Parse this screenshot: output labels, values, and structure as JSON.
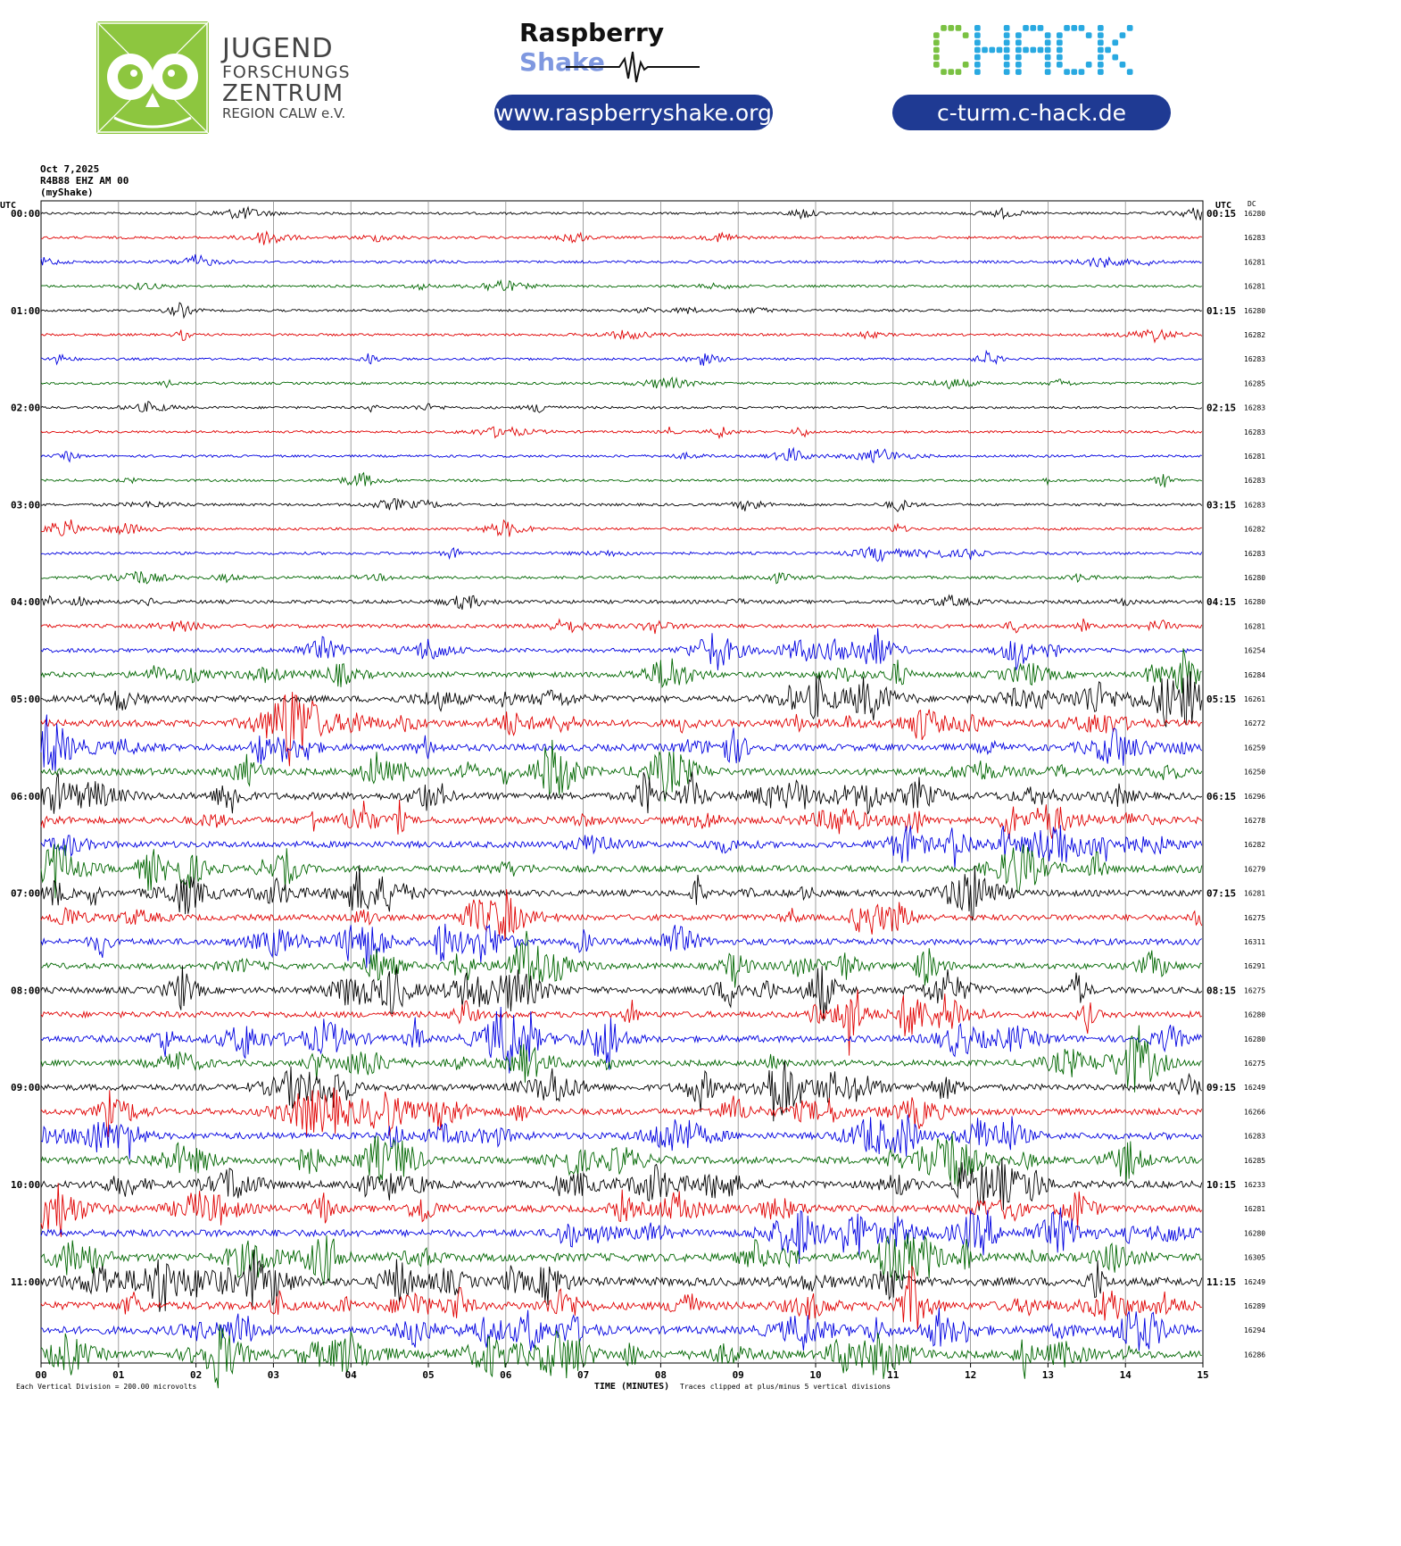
{
  "header": {
    "jfz_lines": [
      "JUGEND",
      "FORSCHUNGS",
      "ZENTRUM",
      "REGION CALW e.V."
    ],
    "rs_brand_1": "Raspberry",
    "rs_brand_2": "Shake",
    "rs_url": "www.raspberryshake.org",
    "chack_logo": "CHACK",
    "chack_url": "c-turm.c-hack.de"
  },
  "chart_data": {
    "type": "line",
    "title_lines": [
      "Oct 7,2025",
      "R4B88 EHZ AM 00",
      "(myShake)"
    ],
    "left_axis_label": "UTC",
    "right_axis_label": "UTC",
    "dc_label": "DC",
    "left_hour_labels": [
      "00:00",
      "01:00",
      "02:00",
      "03:00",
      "04:00",
      "05:00",
      "06:00",
      "07:00",
      "08:00",
      "09:00",
      "10:00",
      "11:00"
    ],
    "right_hour_labels": [
      "00:15",
      "01:15",
      "02:15",
      "03:15",
      "04:15",
      "05:15",
      "06:15",
      "07:15",
      "08:15",
      "09:15",
      "10:15",
      "11:15"
    ],
    "x_tick_labels": [
      "00",
      "01",
      "02",
      "03",
      "04",
      "05",
      "06",
      "07",
      "08",
      "09",
      "10",
      "11",
      "12",
      "13",
      "14",
      "15"
    ],
    "x_axis_label": "TIME (MINUTES)",
    "xlim": [
      0,
      15
    ],
    "trace_minutes": 15,
    "traces_per_hour": 4,
    "trace_colors": [
      "#000000",
      "#e00000",
      "#0000e0",
      "#006600"
    ],
    "dc_offsets": [
      16280,
      16283,
      16281,
      16281,
      16280,
      16282,
      16283,
      16285,
      16283,
      16283,
      16281,
      16283,
      16283,
      16282,
      16283,
      16280,
      16280,
      16281,
      16254,
      16284,
      16261,
      16272,
      16259,
      16250,
      16296,
      16278,
      16282,
      16279,
      16281,
      16275,
      16311,
      16291,
      16275,
      16280,
      16280,
      16275,
      16249,
      16266,
      16283,
      16285,
      16233,
      16281,
      16280,
      16305,
      16249,
      16289,
      16294,
      16286
    ],
    "activity_level": [
      0.12,
      0.14,
      0.14,
      0.12,
      0.12,
      0.13,
      0.12,
      0.13,
      0.13,
      0.13,
      0.13,
      0.13,
      0.15,
      0.15,
      0.16,
      0.17,
      0.25,
      0.28,
      0.33,
      0.45,
      0.55,
      0.6,
      0.6,
      0.62,
      0.65,
      0.6,
      0.55,
      0.55,
      0.55,
      0.5,
      0.55,
      0.5,
      0.55,
      0.52,
      0.58,
      0.52,
      0.55,
      0.55,
      0.6,
      0.62,
      0.65,
      0.6,
      0.65,
      0.75,
      0.8,
      0.72,
      0.7,
      0.72
    ],
    "footer_left": "Each Vertical Division =  200.00 microvolts",
    "footer_right": "Traces clipped at plus/minus 5 vertical divisions"
  }
}
